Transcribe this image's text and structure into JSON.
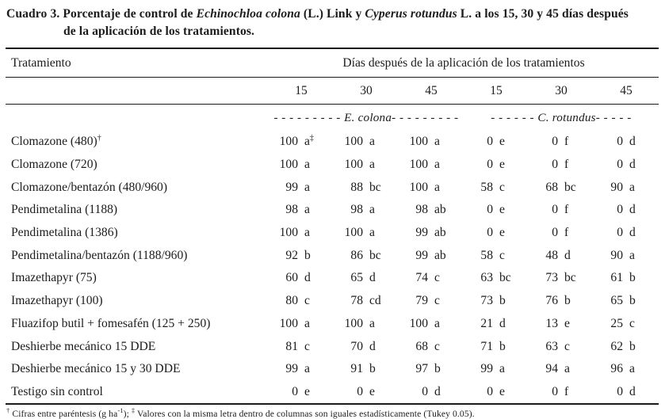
{
  "title": {
    "label": "Cuadro 3.",
    "seg1": "Porcentaje de control de ",
    "species1": "Echinochloa colona",
    "seg2": " (L.) Link y ",
    "species2": "Cyperus rotundus",
    "seg3a": " L. a los 15, 30 y 45 días después",
    "seg3b": "de la aplicación de los tratamientos."
  },
  "table": {
    "col_treatment": "Tratamiento",
    "col_days_header": "Días después de la aplicación de los tratamientos",
    "day_cols": [
      "15",
      "30",
      "45",
      "15",
      "30",
      "45"
    ],
    "species_row": {
      "left_dashes_pre": "- - - - - - - - - ",
      "left_name": "E. colona",
      "left_dashes_post": "- - - - - - - - -",
      "right_dashes_pre": "- - - - - - ",
      "right_name": "C. rotundus",
      "right_dashes_post": "- - - - -"
    },
    "rows": [
      {
        "treatment": "Clomazone (480)",
        "sup": "†",
        "cells": [
          {
            "num": "100",
            "letter": "a",
            "sup": "‡"
          },
          {
            "num": "100",
            "letter": "a"
          },
          {
            "num": "100",
            "letter": "a"
          },
          {
            "num": "0",
            "letter": "e"
          },
          {
            "num": "0",
            "letter": "f"
          },
          {
            "num": "0",
            "letter": "d"
          }
        ]
      },
      {
        "treatment": "Clomazone (720)",
        "cells": [
          {
            "num": "100",
            "letter": "a"
          },
          {
            "num": "100",
            "letter": "a"
          },
          {
            "num": "100",
            "letter": "a"
          },
          {
            "num": "0",
            "letter": "e"
          },
          {
            "num": "0",
            "letter": "f"
          },
          {
            "num": "0",
            "letter": "d"
          }
        ]
      },
      {
        "treatment": "Clomazone/bentazón (480/960)",
        "cells": [
          {
            "num": "99",
            "letter": "a"
          },
          {
            "num": "88",
            "letter": "bc"
          },
          {
            "num": "100",
            "letter": "a"
          },
          {
            "num": "58",
            "letter": "c"
          },
          {
            "num": "68",
            "letter": "bc"
          },
          {
            "num": "90",
            "letter": "a"
          }
        ]
      },
      {
        "treatment": "Pendimetalina (1188)",
        "cells": [
          {
            "num": "98",
            "letter": "a"
          },
          {
            "num": "98",
            "letter": "a"
          },
          {
            "num": "98",
            "letter": "ab"
          },
          {
            "num": "0",
            "letter": "e"
          },
          {
            "num": "0",
            "letter": "f"
          },
          {
            "num": "0",
            "letter": "d"
          }
        ]
      },
      {
        "treatment": "Pendimetalina (1386)",
        "cells": [
          {
            "num": "100",
            "letter": "a"
          },
          {
            "num": "100",
            "letter": "a"
          },
          {
            "num": "99",
            "letter": "ab"
          },
          {
            "num": "0",
            "letter": "e"
          },
          {
            "num": "0",
            "letter": "f"
          },
          {
            "num": "0",
            "letter": "d"
          }
        ]
      },
      {
        "treatment": "Pendimetalina/bentazón (1188/960)",
        "cells": [
          {
            "num": "92",
            "letter": "b"
          },
          {
            "num": "86",
            "letter": "bc"
          },
          {
            "num": "99",
            "letter": "ab"
          },
          {
            "num": "58",
            "letter": "c"
          },
          {
            "num": "48",
            "letter": "d"
          },
          {
            "num": "90",
            "letter": "a"
          }
        ]
      },
      {
        "treatment": "Imazethapyr  (75)",
        "cells": [
          {
            "num": "60",
            "letter": "d"
          },
          {
            "num": "65",
            "letter": "d"
          },
          {
            "num": "74",
            "letter": "c"
          },
          {
            "num": "63",
            "letter": "bc"
          },
          {
            "num": "73",
            "letter": "bc"
          },
          {
            "num": "61",
            "letter": "b"
          }
        ]
      },
      {
        "treatment": "Imazethapyr  (100)",
        "cells": [
          {
            "num": "80",
            "letter": "c"
          },
          {
            "num": "78",
            "letter": "cd"
          },
          {
            "num": "79",
            "letter": "c"
          },
          {
            "num": "73",
            "letter": "b"
          },
          {
            "num": "76",
            "letter": "b"
          },
          {
            "num": "65",
            "letter": "b"
          }
        ]
      },
      {
        "treatment": "Fluazifop butil + fomesafén (125 + 250)",
        "cells": [
          {
            "num": "100",
            "letter": "a"
          },
          {
            "num": "100",
            "letter": "a"
          },
          {
            "num": "100",
            "letter": "a"
          },
          {
            "num": "21",
            "letter": "d"
          },
          {
            "num": "13",
            "letter": "e"
          },
          {
            "num": "25",
            "letter": "c"
          }
        ]
      },
      {
        "treatment": "Deshierbe mecánico 15 DDE",
        "cells": [
          {
            "num": "81",
            "letter": "c"
          },
          {
            "num": "70",
            "letter": "d"
          },
          {
            "num": "68",
            "letter": "c"
          },
          {
            "num": "71",
            "letter": "b"
          },
          {
            "num": "63",
            "letter": "c"
          },
          {
            "num": "62",
            "letter": "b"
          }
        ]
      },
      {
        "treatment": "Deshierbe mecánico 15 y 30 DDE",
        "cells": [
          {
            "num": "99",
            "letter": "a"
          },
          {
            "num": "91",
            "letter": "b"
          },
          {
            "num": "97",
            "letter": "b"
          },
          {
            "num": "99",
            "letter": "a"
          },
          {
            "num": "94",
            "letter": "a"
          },
          {
            "num": "96",
            "letter": "a"
          }
        ]
      },
      {
        "treatment": "Testigo sin control",
        "cells": [
          {
            "num": "0",
            "letter": "e"
          },
          {
            "num": "0",
            "letter": "e"
          },
          {
            "num": "0",
            "letter": "d"
          },
          {
            "num": "0",
            "letter": "e"
          },
          {
            "num": "0",
            "letter": "f"
          },
          {
            "num": "0",
            "letter": "d"
          }
        ]
      }
    ]
  },
  "footnote": {
    "sup1": "†",
    "text1": " Cifras entre paréntesis (g ha",
    "exp": "-1",
    "text2": "); ",
    "sup2": "‡",
    "text3": " Valores con la misma letra dentro de columnas son iguales estadísticamente (Tukey 0.05)."
  }
}
